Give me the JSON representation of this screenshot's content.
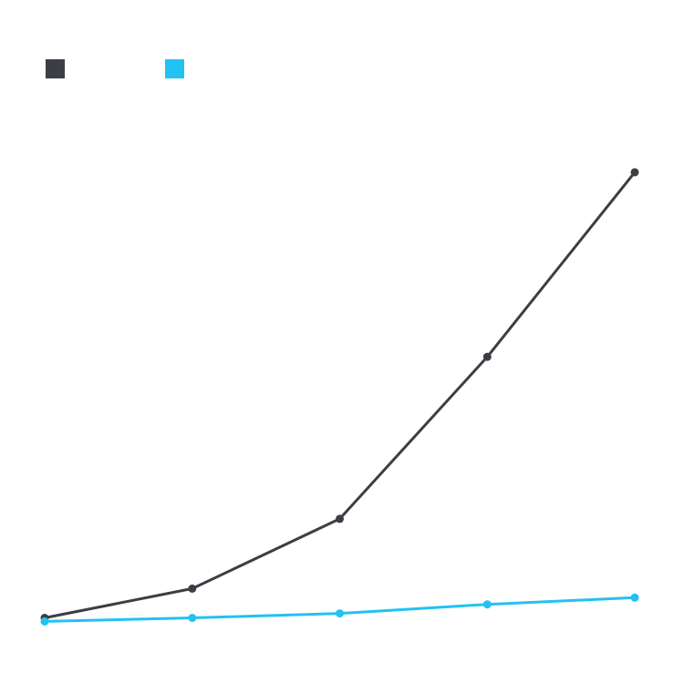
{
  "chart_data": {
    "type": "line",
    "title": "",
    "xlabel": "",
    "ylabel": "",
    "x": [
      1,
      2,
      3,
      4,
      5
    ],
    "ylim": [
      0,
      100
    ],
    "grid": false,
    "legend_position": "top-left",
    "series": [
      {
        "color": "#3d3d45",
        "values": [
          0,
          6.5,
          22,
          58,
          99
        ]
      },
      {
        "color": "#22c2f2",
        "values": [
          -0.8,
          0,
          1,
          3,
          4.5
        ]
      }
    ]
  }
}
